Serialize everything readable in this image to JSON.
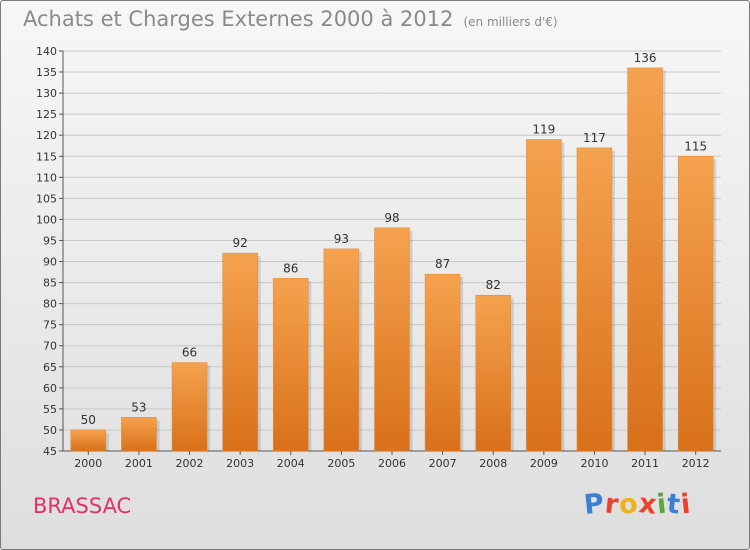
{
  "header": {
    "title": "Achats et Charges Externes 2000 à 2012",
    "subtitle": "(en milliers d'€)"
  },
  "footer": {
    "commune": "BRASSAC",
    "logo_letters": [
      "P",
      "r",
      "o",
      "x",
      "i",
      "t",
      "i"
    ]
  },
  "colors": {
    "bar_top": "#f5a24e",
    "bar_bottom": "#d9701a",
    "logo": [
      "#3b7fd3",
      "#e8432d",
      "#f0b21a",
      "#e8432d",
      "#5aa83b",
      "#3b7fd3",
      "#e8432d"
    ]
  },
  "chart_data": {
    "type": "bar",
    "title": "Achats et Charges Externes 2000 à 2012",
    "subtitle": "(en milliers d'€)",
    "categories": [
      "2000",
      "2001",
      "2002",
      "2003",
      "2004",
      "2005",
      "2006",
      "2007",
      "2008",
      "2009",
      "2010",
      "2011",
      "2012"
    ],
    "values": [
      50,
      53,
      66,
      92,
      86,
      93,
      98,
      87,
      82,
      119,
      117,
      136,
      115
    ],
    "ylim": [
      45,
      140
    ],
    "yticks": [
      45,
      50,
      55,
      60,
      65,
      70,
      75,
      80,
      85,
      90,
      95,
      100,
      105,
      110,
      115,
      120,
      125,
      130,
      135,
      140
    ],
    "grid": true,
    "xlabel": "",
    "ylabel": ""
  }
}
